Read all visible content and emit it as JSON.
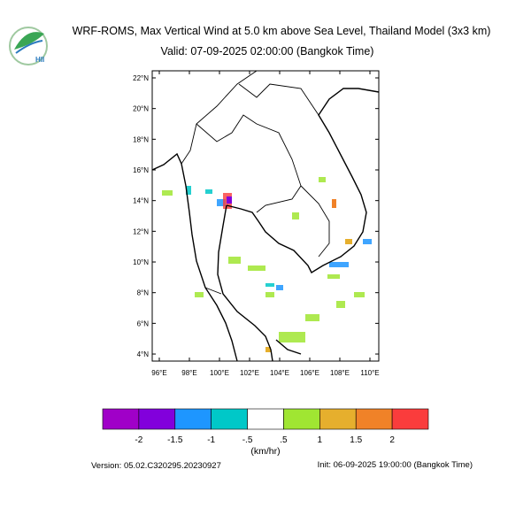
{
  "header": {
    "title": "WRF-ROMS, Max Vertical Wind at 5.0 km above Sea Level, Thailand Model (3x3 km)",
    "subtitle": "Valid: 07-09-2025 02:00:00 (Bangkok Time)",
    "logo_text": "HII"
  },
  "map": {
    "lat_labels": [
      "22°N",
      "20°N",
      "18°N",
      "16°N",
      "14°N",
      "12°N",
      "10°N",
      "8°N",
      "6°N",
      "4°N"
    ],
    "lon_labels": [
      "96°E",
      "98°E",
      "100°E",
      "102°E",
      "104°E",
      "106°E",
      "108°E",
      "110°E"
    ]
  },
  "colorbar": {
    "colors": [
      "#a000c8",
      "#8200dc",
      "#1e96ff",
      "#00c8c8",
      "#ffffff",
      "#a0e632",
      "#e6af2d",
      "#f08228",
      "#fa3c3c"
    ],
    "labels": [
      "-2",
      "-1.5",
      "-1",
      "-.5",
      ".5",
      "1",
      "1.5",
      "2"
    ],
    "unit": "(km/hr)"
  },
  "footer": {
    "version": "Version: 05.02.C320295.20230927",
    "init": "Init: 06-09-2025 19:00:00 (Bangkok Time)"
  }
}
